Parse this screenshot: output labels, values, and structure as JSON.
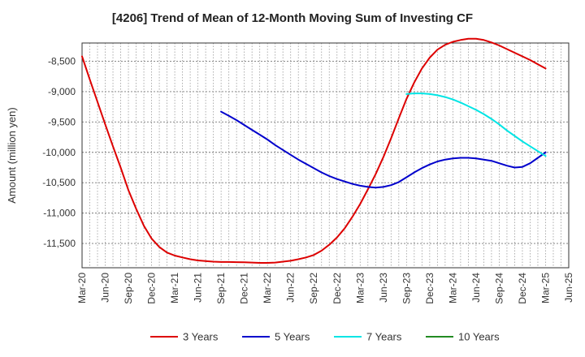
{
  "chart_data": {
    "type": "line",
    "title": "[4206]  Trend of Mean of 12-Month Moving Sum of Investing CF",
    "xlabel": "",
    "ylabel": "Amount (million yen)",
    "ylim": [
      -11900,
      -8200
    ],
    "yticks": [
      -8500,
      -9000,
      -9500,
      -10000,
      -10500,
      -11000,
      -11500
    ],
    "ytick_labels": [
      "-8,500",
      "-9,000",
      "-9,500",
      "-10,000",
      "-10,500",
      "-11,000",
      "-11,500"
    ],
    "xticks": [
      "Mar-20",
      "Jun-20",
      "Sep-20",
      "Dec-20",
      "Mar-21",
      "Jun-21",
      "Sep-21",
      "Dec-21",
      "Mar-22",
      "Jun-22",
      "Sep-22",
      "Dec-22",
      "Mar-23",
      "Jun-23",
      "Sep-23",
      "Dec-23",
      "Mar-24",
      "Jun-24",
      "Sep-24",
      "Dec-24",
      "Mar-25",
      "Jun-25"
    ],
    "grid": true,
    "legend_position": "bottom",
    "series": [
      {
        "name": "3 Years",
        "color": "#dd0000",
        "x": [
          "2020-03",
          "2020-04",
          "2020-05",
          "2020-06",
          "2020-07",
          "2020-08",
          "2020-09",
          "2020-10",
          "2020-11",
          "2020-12",
          "2021-01",
          "2021-02",
          "2021-03",
          "2021-04",
          "2021-05",
          "2021-06",
          "2021-07",
          "2021-08",
          "2021-09",
          "2021-10",
          "2021-11",
          "2021-12",
          "2022-01",
          "2022-02",
          "2022-03",
          "2022-04",
          "2022-05",
          "2022-06",
          "2022-07",
          "2022-08",
          "2022-09",
          "2022-10",
          "2022-11",
          "2022-12",
          "2023-01",
          "2023-02",
          "2023-03",
          "2023-04",
          "2023-05",
          "2023-06",
          "2023-07",
          "2023-08",
          "2023-09",
          "2023-10",
          "2023-11",
          "2023-12",
          "2024-01",
          "2024-02",
          "2024-03",
          "2024-04",
          "2024-05",
          "2024-06",
          "2024-07",
          "2024-08",
          "2024-09",
          "2024-10",
          "2024-11",
          "2024-12",
          "2025-01",
          "2025-02",
          "2025-03"
        ],
        "values": [
          -8420,
          -8800,
          -9170,
          -9540,
          -9900,
          -10250,
          -10620,
          -10930,
          -11210,
          -11420,
          -11560,
          -11650,
          -11700,
          -11730,
          -11760,
          -11780,
          -11790,
          -11800,
          -11805,
          -11805,
          -11808,
          -11810,
          -11815,
          -11820,
          -11820,
          -11815,
          -11800,
          -11785,
          -11760,
          -11730,
          -11690,
          -11620,
          -11520,
          -11400,
          -11250,
          -11060,
          -10850,
          -10610,
          -10360,
          -10080,
          -9770,
          -9440,
          -9120,
          -8850,
          -8620,
          -8440,
          -8310,
          -8230,
          -8180,
          -8150,
          -8130,
          -8130,
          -8150,
          -8190,
          -8240,
          -8300,
          -8360,
          -8420,
          -8480,
          -8550,
          -8620
        ]
      },
      {
        "name": "5 Years",
        "color": "#0000cc",
        "x": [
          "2021-09",
          "2021-10",
          "2021-11",
          "2021-12",
          "2022-01",
          "2022-02",
          "2022-03",
          "2022-04",
          "2022-05",
          "2022-06",
          "2022-07",
          "2022-08",
          "2022-09",
          "2022-10",
          "2022-11",
          "2022-12",
          "2023-01",
          "2023-02",
          "2023-03",
          "2023-04",
          "2023-05",
          "2023-06",
          "2023-07",
          "2023-08",
          "2023-09",
          "2023-10",
          "2023-11",
          "2023-12",
          "2024-01",
          "2024-02",
          "2024-03",
          "2024-04",
          "2024-05",
          "2024-06",
          "2024-07",
          "2024-08",
          "2024-09",
          "2024-10",
          "2024-11",
          "2024-12",
          "2025-01",
          "2025-02",
          "2025-03"
        ],
        "values": [
          -9330,
          -9400,
          -9470,
          -9550,
          -9630,
          -9710,
          -9790,
          -9880,
          -9960,
          -10040,
          -10120,
          -10190,
          -10260,
          -10330,
          -10390,
          -10440,
          -10480,
          -10520,
          -10550,
          -10570,
          -10580,
          -10570,
          -10540,
          -10490,
          -10410,
          -10330,
          -10260,
          -10200,
          -10150,
          -10120,
          -10100,
          -10090,
          -10090,
          -10100,
          -10120,
          -10140,
          -10180,
          -10220,
          -10250,
          -10240,
          -10180,
          -10090,
          -10000
        ]
      },
      {
        "name": "7 Years",
        "color": "#00e5e5",
        "x": [
          "2023-09",
          "2023-10",
          "2023-11",
          "2023-12",
          "2024-01",
          "2024-02",
          "2024-03",
          "2024-04",
          "2024-05",
          "2024-06",
          "2024-07",
          "2024-08",
          "2024-09",
          "2024-10",
          "2024-11",
          "2024-12",
          "2025-01",
          "2025-02",
          "2025-03"
        ],
        "values": [
          -9040,
          -9030,
          -9030,
          -9040,
          -9060,
          -9090,
          -9130,
          -9180,
          -9240,
          -9300,
          -9370,
          -9450,
          -9540,
          -9640,
          -9730,
          -9820,
          -9900,
          -9980,
          -10060
        ]
      },
      {
        "name": "10 Years",
        "color": "#228b22",
        "x": [],
        "values": []
      }
    ]
  }
}
